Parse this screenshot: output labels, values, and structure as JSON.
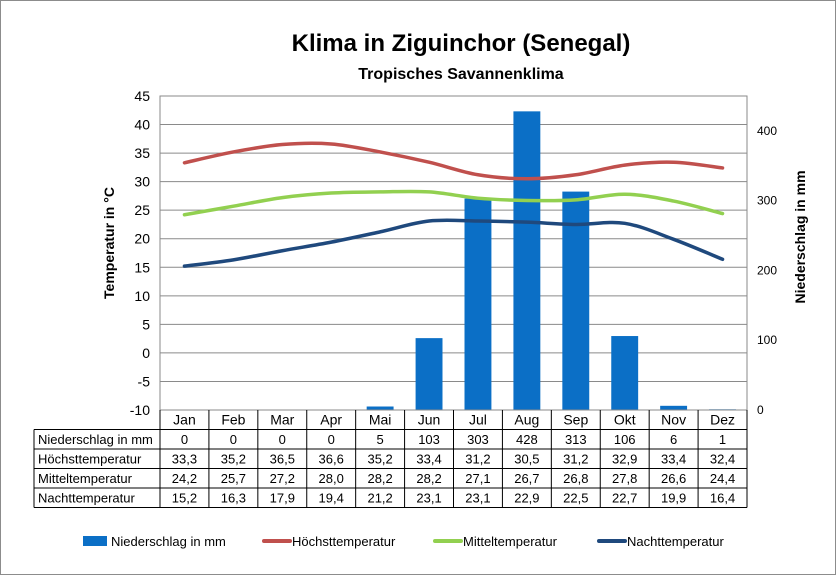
{
  "chart_data": {
    "type": "bar",
    "title": "Klima in Ziguinchor (Senegal)",
    "subtitle": "Tropisches Savannenklima",
    "ylabel_left": "Temperatur in °C",
    "ylabel_right": "Niederschlag in mm",
    "categories": [
      "Jan",
      "Feb",
      "Mar",
      "Apr",
      "Mai",
      "Jun",
      "Jul",
      "Aug",
      "Sep",
      "Okt",
      "Nov",
      "Dez"
    ],
    "ylim_left": [
      -10,
      45
    ],
    "yticks_left": [
      "-10",
      "-5",
      "0",
      "5",
      "10",
      "15",
      "20",
      "25",
      "30",
      "35",
      "40",
      "45"
    ],
    "ylim_right": [
      0,
      450
    ],
    "yticks_right": [
      "0",
      "100",
      "200",
      "300",
      "400"
    ],
    "series": [
      {
        "name": "Niederschlag in mm",
        "type": "bar",
        "axis": "right",
        "color": "#0b6fc6",
        "values": [
          0,
          0,
          0,
          0,
          5,
          103,
          303,
          428,
          313,
          106,
          6,
          1
        ],
        "labels": [
          "0",
          "0",
          "0",
          "0",
          "5",
          "103",
          "303",
          "428",
          "313",
          "106",
          "6",
          "1"
        ]
      },
      {
        "name": "Höchsttemperatur",
        "type": "line",
        "axis": "left",
        "color": "#c0504d",
        "values": [
          33.3,
          35.2,
          36.5,
          36.6,
          35.2,
          33.4,
          31.2,
          30.5,
          31.2,
          32.9,
          33.4,
          32.4
        ],
        "labels": [
          "33,3",
          "35,2",
          "36,5",
          "36,6",
          "35,2",
          "33,4",
          "31,2",
          "30,5",
          "31,2",
          "32,9",
          "33,4",
          "32,4"
        ]
      },
      {
        "name": "Mitteltemperatur",
        "type": "line",
        "axis": "left",
        "color": "#92d050",
        "values": [
          24.2,
          25.7,
          27.2,
          28.0,
          28.2,
          28.2,
          27.1,
          26.7,
          26.8,
          27.8,
          26.6,
          24.4
        ],
        "labels": [
          "24,2",
          "25,7",
          "27,2",
          "28,0",
          "28,2",
          "28,2",
          "27,1",
          "26,7",
          "26,8",
          "27,8",
          "26,6",
          "24,4"
        ]
      },
      {
        "name": "Nachttemperatur",
        "type": "line",
        "axis": "left",
        "color": "#1f497d",
        "values": [
          15.2,
          16.3,
          17.9,
          19.4,
          21.2,
          23.1,
          23.1,
          22.9,
          22.5,
          22.7,
          19.9,
          16.4
        ],
        "labels": [
          "15,2",
          "16,3",
          "17,9",
          "19,4",
          "21,2",
          "23,1",
          "23,1",
          "22,9",
          "22,5",
          "22,7",
          "19,9",
          "16,4"
        ]
      }
    ],
    "grid": true,
    "legend": "bottom"
  }
}
